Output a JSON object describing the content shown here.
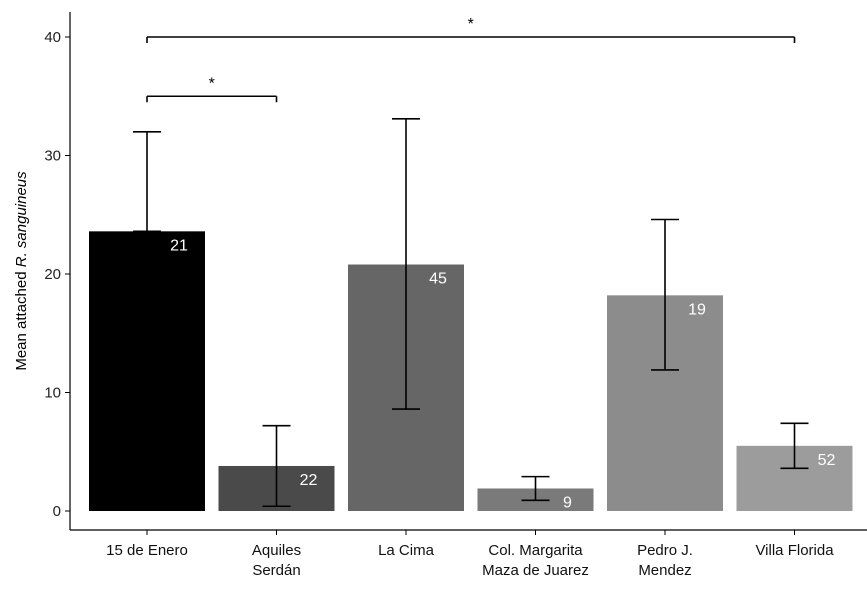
{
  "chart_data": {
    "type": "bar",
    "ylabel": {
      "prefix": "Mean attached ",
      "italic": "R. sanguineus"
    },
    "xlabel": "",
    "ylim": [
      0,
      42
    ],
    "yticks": [
      0,
      10,
      20,
      30,
      40
    ],
    "grid": false,
    "categories": [
      [
        "15 de Enero"
      ],
      [
        "Aquiles",
        "Serdán"
      ],
      [
        "La Cima"
      ],
      [
        "Col. Margarita",
        "Maza de Juarez"
      ],
      [
        "Pedro J.",
        "Mendez"
      ],
      [
        "Villa Florida"
      ]
    ],
    "values": [
      23.6,
      3.8,
      20.8,
      1.9,
      18.2,
      5.5
    ],
    "error_low": [
      23.6,
      0.4,
      8.6,
      0.9,
      11.9,
      3.6
    ],
    "error_high": [
      32.0,
      7.2,
      33.1,
      2.9,
      24.6,
      7.4
    ],
    "bar_labels": [
      "21",
      "22",
      "45",
      "9",
      "19",
      "52"
    ],
    "bar_colors": [
      "#000000",
      "#4a4a4a",
      "#666666",
      "#7a7a7a",
      "#8c8c8c",
      "#9c9c9c"
    ],
    "significance": [
      {
        "from": 0,
        "to": 1,
        "y": 35.0,
        "label": "*"
      },
      {
        "from": 0,
        "to": 5,
        "y": 40.0,
        "label": "*"
      }
    ]
  }
}
